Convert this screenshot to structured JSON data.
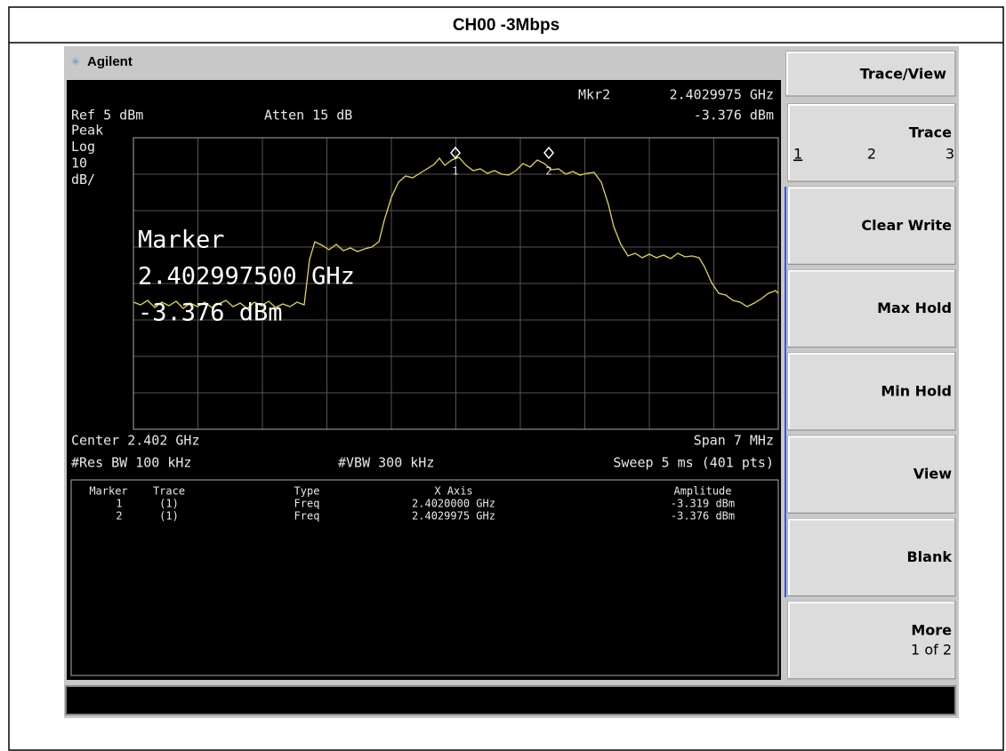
{
  "title": "CH00 -3Mbps",
  "header": {
    "brand": "Agilent"
  },
  "display": {
    "marker_readout": {
      "label": "Mkr2",
      "frequency": "2.4029975 GHz",
      "amplitude": "-3.376 dBm"
    },
    "ref_level": "Ref 5 dBm",
    "attenuation": "Atten 15 dB",
    "scale": [
      "Peak",
      "Log",
      "10",
      "dB/"
    ],
    "marker_labels": [
      "1",
      "2"
    ],
    "active_marker": [
      "Marker",
      "2.402997500 GHz",
      "-3.376 dBm"
    ],
    "center": "Center 2.402 GHz",
    "span": "Span 7 MHz",
    "res_bw": "#Res BW 100 kHz",
    "vbw": "#VBW 300 kHz",
    "sweep": "Sweep 5 ms (401 pts)"
  },
  "marker_table": {
    "columns": [
      "Marker",
      "Trace",
      "Type",
      "X Axis",
      "Amplitude"
    ],
    "rows": [
      [
        "1",
        "(1)",
        "Freq",
        "2.4020000 GHz",
        "-3.319 dBm"
      ],
      [
        "2",
        "(1)",
        "Freq",
        "2.4029975 GHz",
        "-3.376 dBm"
      ]
    ]
  },
  "softkeys": {
    "title": "Trace/View",
    "buttons": [
      {
        "label": "Trace",
        "options": [
          "1",
          "2",
          "3"
        ]
      },
      {
        "label": "Clear Write"
      },
      {
        "label": "Max Hold"
      },
      {
        "label": "Min Hold"
      },
      {
        "label": "View"
      },
      {
        "label": "Blank"
      },
      {
        "label": "More",
        "sub": "1 of 2"
      }
    ]
  }
}
